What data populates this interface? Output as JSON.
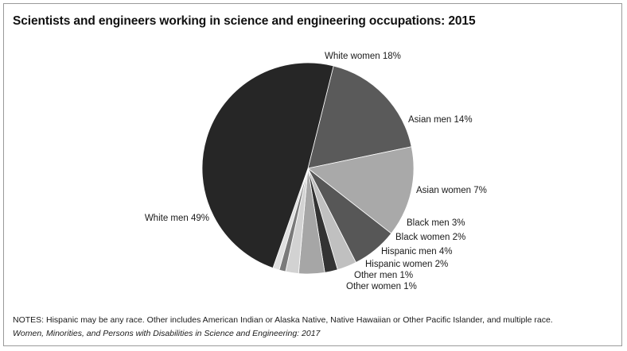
{
  "chart_data": {
    "type": "pie",
    "title": "Scientists and engineers working in science and engineering occupations: 2015",
    "slices": [
      {
        "label": "White women 18%",
        "value": 18,
        "color": "#5a5a5a"
      },
      {
        "label": "Asian men 14%",
        "value": 14,
        "color": "#a9a9a9"
      },
      {
        "label": "Asian women 7%",
        "value": 7,
        "color": "#575757"
      },
      {
        "label": "Black men 3%",
        "value": 3,
        "color": "#c0c0c0"
      },
      {
        "label": "Black women 2%",
        "value": 2,
        "color": "#333333"
      },
      {
        "label": "Hispanic men 4%",
        "value": 4,
        "color": "#a6a6a6"
      },
      {
        "label": "Hispanic women 2%",
        "value": 2,
        "color": "#d2d2d2"
      },
      {
        "label": "Other men 1%",
        "value": 1,
        "color": "#7a7a7a"
      },
      {
        "label": "Other women 1%",
        "value": 1,
        "color": "#e0e0e0"
      },
      {
        "label": "White men 49%",
        "value": 49,
        "color": "#262626"
      }
    ]
  },
  "notes": "NOTES: Hispanic may be any race. Other includes American Indian or Alaska Native, Native Hawaiian or Other Pacific Islander, and multiple race.",
  "source": "Women, Minorities, and Persons with Disabilities in Science and Engineering: 2017"
}
